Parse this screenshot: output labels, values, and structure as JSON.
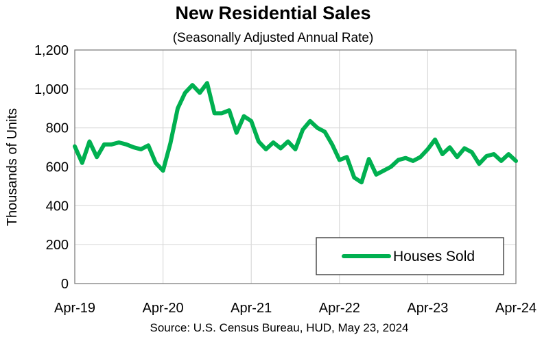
{
  "chart_data": {
    "type": "line",
    "title": "New Residential Sales",
    "subtitle": "(Seasonally Adjusted Annual Rate)",
    "xlabel": "",
    "ylabel": "Thousands of Units",
    "source": "Source:  U.S. Census Bureau, HUD, May 23, 2024",
    "ylim": [
      0,
      1200
    ],
    "yticks": [
      0,
      200,
      400,
      600,
      800,
      1000,
      1200
    ],
    "ytick_labels": [
      "0",
      "200",
      "400",
      "600",
      "800",
      "1,000",
      "1,200"
    ],
    "xlim": [
      0,
      60
    ],
    "xticks": [
      0,
      12,
      24,
      36,
      48,
      60
    ],
    "xtick_labels": [
      "Apr-19",
      "Apr-20",
      "Apr-21",
      "Apr-22",
      "Apr-23",
      "Apr-24"
    ],
    "grid": true,
    "legend": {
      "position": "bottom-right",
      "entries": [
        "Houses Sold"
      ]
    },
    "series": [
      {
        "name": "Houses Sold",
        "color": "#00B050",
        "x_unit": "months since Apr-19",
        "x": [
          0,
          1,
          2,
          3,
          4,
          5,
          6,
          7,
          8,
          9,
          10,
          11,
          12,
          13,
          14,
          15,
          16,
          17,
          18,
          19,
          20,
          21,
          22,
          23,
          24,
          25,
          26,
          27,
          28,
          29,
          30,
          31,
          32,
          33,
          34,
          35,
          36,
          37,
          38,
          39,
          40,
          41,
          42,
          43,
          44,
          45,
          46,
          47,
          48,
          49,
          50,
          51,
          52,
          53,
          54,
          55,
          56,
          57,
          58,
          59,
          60
        ],
        "values": [
          705,
          620,
          730,
          650,
          715,
          715,
          725,
          715,
          700,
          690,
          710,
          620,
          580,
          720,
          900,
          980,
          1020,
          980,
          1030,
          875,
          875,
          890,
          775,
          860,
          835,
          730,
          690,
          725,
          695,
          730,
          690,
          790,
          835,
          800,
          780,
          715,
          635,
          650,
          545,
          520,
          640,
          560,
          580,
          600,
          635,
          645,
          630,
          650,
          690,
          740,
          665,
          700,
          650,
          695,
          675,
          615,
          655,
          665,
          630,
          665,
          630
        ]
      }
    ]
  }
}
